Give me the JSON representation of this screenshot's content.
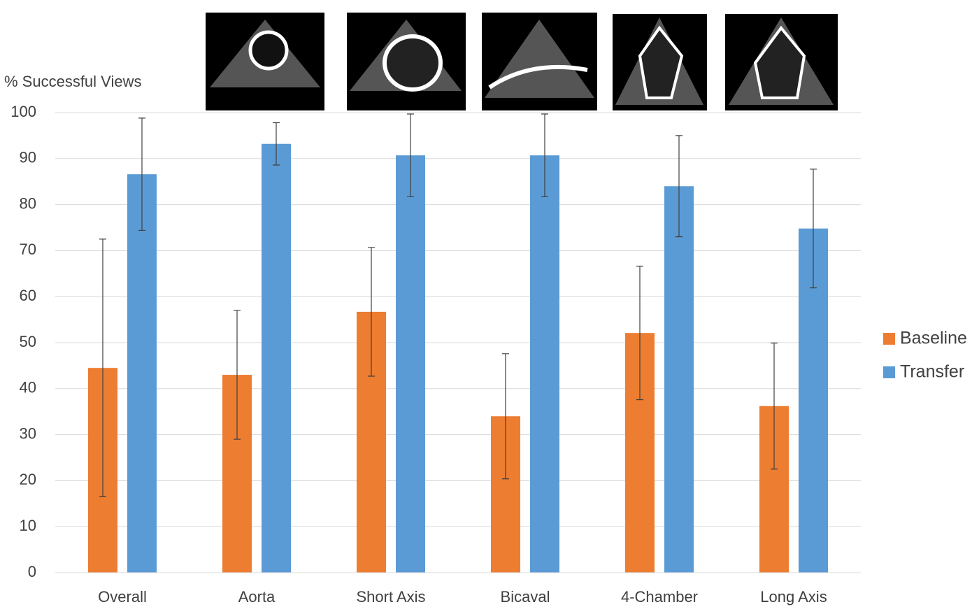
{
  "chart_data": {
    "type": "bar",
    "y_label": "% Successful Views",
    "categories": [
      "Overall",
      "Aorta",
      "Short Axis",
      "Bicaval",
      "4-Chamber",
      "Long Axis"
    ],
    "series": [
      {
        "name": "Baseline",
        "color": "#ed7d31",
        "values": [
          44.5,
          43,
          56.7,
          34,
          52.1,
          36.2
        ],
        "errors": [
          28,
          14,
          14,
          13.6,
          14.5,
          13.7
        ]
      },
      {
        "name": "Transfer",
        "color": "#5b9bd5",
        "values": [
          86.6,
          93.2,
          90.7,
          90.7,
          84,
          74.8
        ],
        "errors": [
          12.2,
          4.6,
          9,
          9,
          11,
          12.9
        ]
      }
    ],
    "ylim": [
      0,
      100
    ],
    "yticks": [
      0,
      10,
      20,
      30,
      40,
      50,
      60,
      70,
      80,
      90,
      100
    ],
    "grid": true,
    "legend": "right"
  }
}
